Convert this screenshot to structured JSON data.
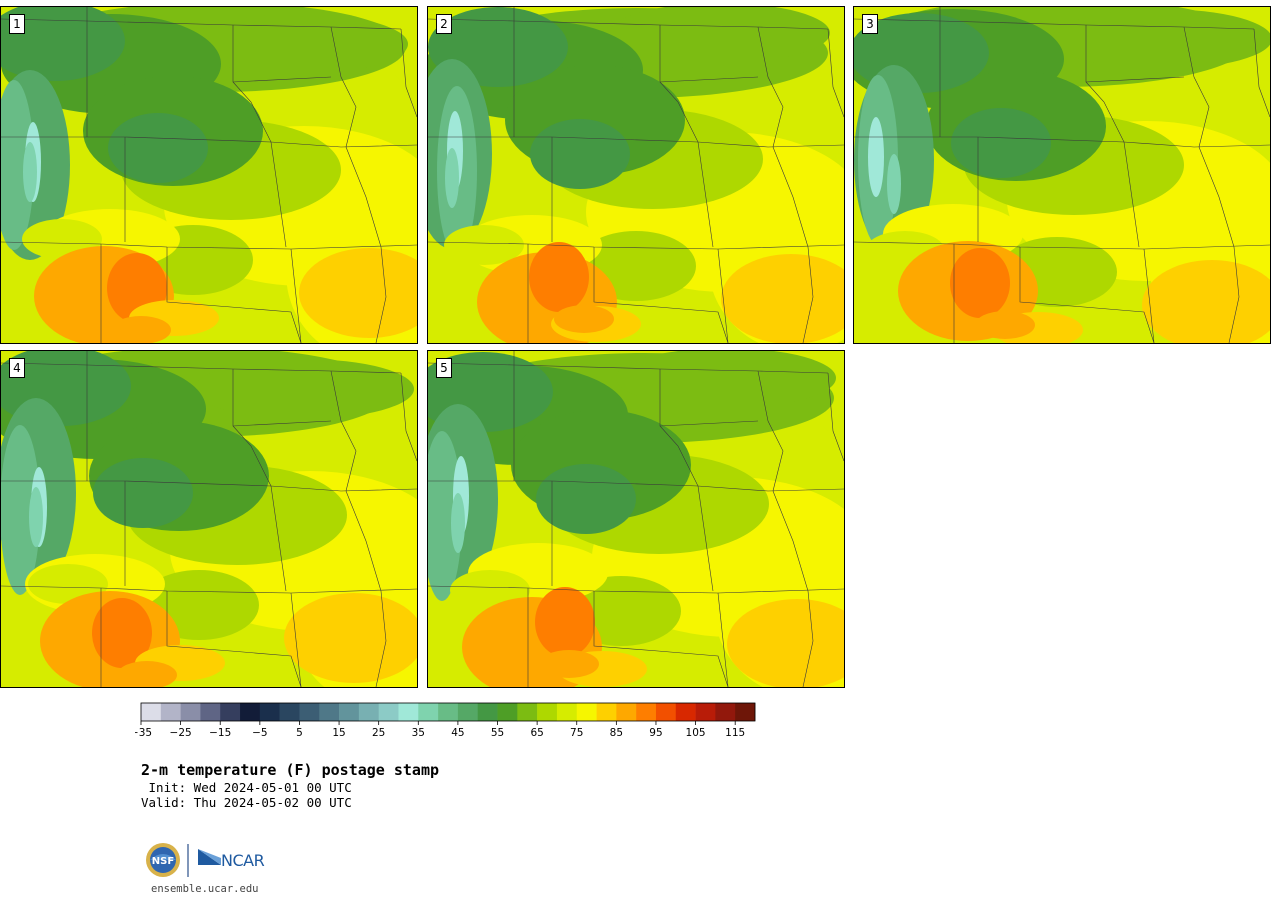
{
  "panels": [
    {
      "label": "1"
    },
    {
      "label": "2"
    },
    {
      "label": "3"
    },
    {
      "label": "4"
    },
    {
      "label": "5"
    }
  ],
  "colorbar": {
    "colors": [
      "#dcdde8",
      "#b2b4c8",
      "#8a8ea8",
      "#5f6585",
      "#353e5e",
      "#121c38",
      "#1a2f4c",
      "#2a4660",
      "#3c5e74",
      "#4f7888",
      "#62949c",
      "#78b0b2",
      "#8ccbc6",
      "#a0e8d8",
      "#7fd3ae",
      "#68bc86",
      "#55a866",
      "#449844",
      "#4e9e26",
      "#7cbc12",
      "#aed800",
      "#d6ec00",
      "#f6f600",
      "#fed000",
      "#fea800",
      "#fe7e00",
      "#f25000",
      "#d82800",
      "#b81c08",
      "#92180c",
      "#6e1608"
    ],
    "tick_labels": [
      "−35",
      "−25",
      "−15",
      "−5",
      "5",
      "15",
      "25",
      "35",
      "45",
      "55",
      "65",
      "75",
      "85",
      "95",
      "105",
      "115"
    ]
  },
  "title": "2-m temperature (F) postage stamp",
  "init": " Init: Wed 2024-05-01 00 UTC",
  "valid": "Valid: Thu 2024-05-02 00 UTC",
  "logo": {
    "nsf": "NSF",
    "ncar": "NCAR"
  },
  "url": "ensemble.ucar.edu"
}
